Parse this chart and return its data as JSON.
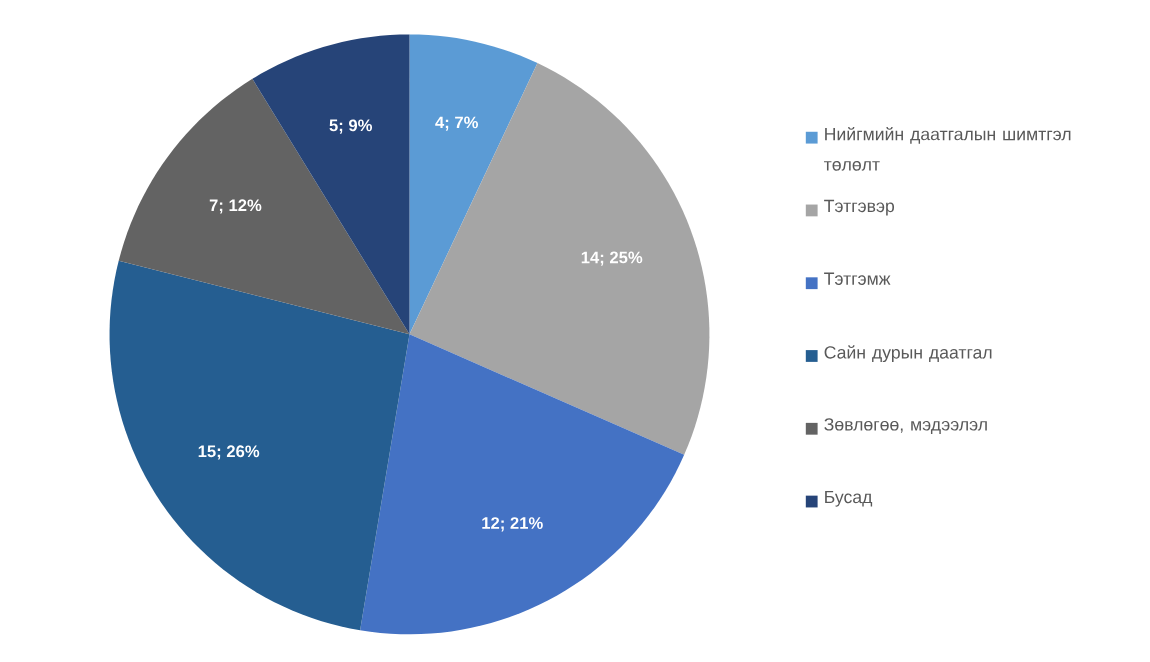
{
  "chart_data": {
    "type": "pie",
    "categories": [
      "Нийгмийн даатгалын шимтгэл төлөлт",
      "Тэтгэвэр",
      "Тэтгэмж",
      "Сайн дурын даатгал",
      "Зөвлөгөө, мэдээлэл",
      "Бусад"
    ],
    "values": [
      4,
      14,
      12,
      15,
      7,
      5
    ],
    "colors": [
      "#5b9bd5",
      "#a5a5a5",
      "#4472c4",
      "#255e91",
      "#636363",
      "#264478"
    ],
    "value_labels": [
      "4; 7%",
      "14; 25%",
      "12; 21%",
      "15; 26%",
      "7; 12%",
      "5; 9%"
    ],
    "legend": "right"
  }
}
